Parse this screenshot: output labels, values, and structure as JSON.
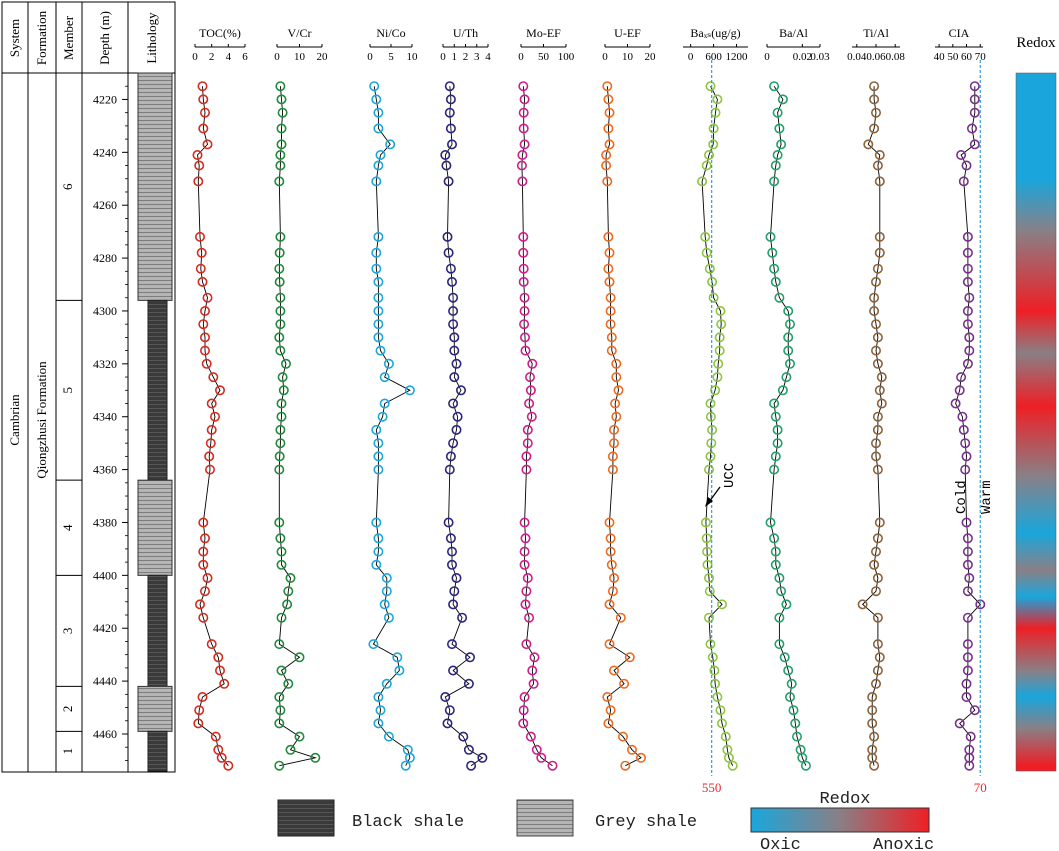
{
  "strat": {
    "headers": {
      "system": "System",
      "formation": "Formation",
      "member": "Member",
      "depth": "Depth (m)",
      "lithology": "Lithology"
    },
    "system": "Cambrian",
    "formation": "Qiongzhusi Formation",
    "members": [
      {
        "label": "6",
        "top": 4210,
        "bottom": 4296
      },
      {
        "label": "5",
        "top": 4296,
        "bottom": 4364
      },
      {
        "label": "4",
        "top": 4364,
        "bottom": 4400
      },
      {
        "label": "3",
        "top": 4400,
        "bottom": 4442
      },
      {
        "label": "2",
        "top": 4442,
        "bottom": 4459
      },
      {
        "label": "1",
        "top": 4459,
        "bottom": 4474
      }
    ],
    "lithology": [
      {
        "type": "grey",
        "top": 4210,
        "bottom": 4296
      },
      {
        "type": "black",
        "top": 4296,
        "bottom": 4364
      },
      {
        "type": "grey",
        "top": 4364,
        "bottom": 4400
      },
      {
        "type": "black",
        "top": 4400,
        "bottom": 4442
      },
      {
        "type": "grey",
        "top": 4442,
        "bottom": 4459
      },
      {
        "type": "black",
        "top": 4459,
        "bottom": 4474
      }
    ]
  },
  "chart_data": {
    "type": "line",
    "y_axis": {
      "label": "Depth (m)",
      "range": [
        4210,
        4474
      ],
      "ticks": [
        4220,
        4240,
        4260,
        4280,
        4300,
        4320,
        4340,
        4360,
        4380,
        4400,
        4420,
        4440,
        4460
      ]
    },
    "depths": [
      4215,
      4220,
      4225,
      4231,
      4237,
      4241,
      4245,
      4251,
      4272,
      4278,
      4284,
      4289,
      4295,
      4300,
      4305,
      4310,
      4315,
      4320,
      4325,
      4330,
      4335,
      4340,
      4345,
      4350,
      4355,
      4360,
      4380,
      4386,
      4391,
      4396,
      4401,
      4406,
      4411,
      4416,
      4426,
      4431,
      4436,
      4441,
      4446,
      4451,
      4456,
      4461,
      4466,
      4469,
      4472
    ],
    "series": [
      {
        "name": "TOC(%)",
        "color": "#d62a1e",
        "range": [
          0,
          6
        ],
        "ticks": [
          "0",
          "2",
          "4",
          "6"
        ],
        "tickvals": [
          0,
          2,
          4,
          6
        ],
        "values": [
          0.9,
          1.0,
          1.2,
          1.0,
          1.5,
          0.3,
          0.5,
          0.4,
          0.6,
          0.8,
          0.7,
          0.9,
          1.5,
          1.2,
          1.0,
          1.2,
          1.2,
          1.4,
          2.2,
          3.0,
          2.0,
          2.4,
          2.0,
          1.9,
          1.7,
          1.8,
          1.0,
          1.2,
          1.0,
          1.0,
          1.5,
          1.2,
          0.6,
          1.0,
          2.0,
          2.8,
          3.0,
          3.5,
          0.9,
          0.5,
          0.4,
          2.5,
          2.8,
          3.2,
          4.0
        ]
      },
      {
        "name": "V/Cr",
        "color": "#1f8a3a",
        "range": [
          0,
          20
        ],
        "ticks": [
          "0",
          "10",
          "20"
        ],
        "tickvals": [
          0,
          10,
          20
        ],
        "values": [
          1.5,
          2.0,
          2.5,
          2.0,
          2.0,
          1.5,
          1.5,
          1.0,
          1.5,
          1.2,
          1.0,
          1.2,
          1.5,
          1.5,
          1.5,
          1.0,
          1.5,
          4.0,
          2.5,
          3.0,
          2.0,
          2.0,
          1.5,
          1.5,
          1.2,
          1.0,
          1.0,
          1.5,
          2.0,
          2.0,
          6.0,
          5.0,
          4.5,
          2.0,
          1.0,
          10.0,
          2.0,
          5.0,
          1.0,
          1.5,
          1.0,
          10.0,
          6.0,
          17.0,
          1.0
        ]
      },
      {
        "name": "Ni/Co",
        "color": "#1aa7dc",
        "range": [
          0,
          10
        ],
        "ticks": [
          "0",
          "5",
          "10"
        ],
        "tickvals": [
          0,
          5,
          10
        ],
        "values": [
          1.0,
          1.5,
          2.0,
          2.0,
          4.8,
          2.5,
          2.0,
          1.5,
          2.0,
          1.5,
          1.5,
          2.0,
          2.0,
          2.0,
          2.0,
          2.0,
          2.5,
          4.5,
          3.5,
          9.5,
          3.5,
          3.0,
          1.5,
          2.0,
          2.0,
          2.0,
          1.5,
          2.0,
          2.0,
          1.5,
          4.0,
          4.0,
          3.5,
          4.5,
          0.8,
          6.5,
          7.0,
          4.0,
          2.0,
          2.5,
          2.0,
          4.5,
          9.0,
          9.5,
          8.5
        ]
      },
      {
        "name": "U/Th",
        "color": "#2a2480",
        "range": [
          0,
          4
        ],
        "ticks": [
          "0",
          "1",
          "2",
          "3",
          "4"
        ],
        "tickvals": [
          0,
          1,
          2,
          3,
          4
        ],
        "values": [
          0.6,
          0.7,
          0.6,
          0.7,
          0.8,
          0.2,
          0.3,
          0.5,
          0.4,
          0.5,
          0.7,
          0.8,
          0.9,
          0.9,
          0.9,
          1.0,
          1.0,
          1.2,
          1.0,
          1.6,
          0.9,
          1.3,
          1.2,
          0.9,
          0.7,
          0.6,
          0.5,
          0.7,
          0.8,
          0.8,
          1.2,
          1.0,
          0.9,
          1.7,
          0.8,
          2.4,
          0.9,
          2.3,
          0.2,
          0.6,
          0.4,
          1.8,
          2.3,
          3.5,
          2.5
        ]
      },
      {
        "name": "Mo-EF",
        "color": "#d01c8b",
        "range": [
          0,
          100
        ],
        "ticks": [
          "0",
          "50",
          "100"
        ],
        "tickvals": [
          0,
          50,
          100
        ],
        "values": [
          5,
          8,
          6,
          6,
          8,
          3,
          2,
          3,
          5,
          5,
          6,
          6,
          8,
          8,
          7,
          9,
          10,
          25,
          20,
          22,
          18,
          24,
          15,
          15,
          12,
          12,
          8,
          10,
          8,
          8,
          15,
          12,
          10,
          18,
          12,
          30,
          25,
          28,
          8,
          6,
          5,
          22,
          35,
          45,
          70
        ]
      },
      {
        "name": "U-EF",
        "color": "#ee6a1f",
        "range": [
          0,
          20
        ],
        "ticks": [
          "0",
          "10",
          "20"
        ],
        "tickvals": [
          0,
          10,
          20
        ],
        "values": [
          1,
          1.5,
          2,
          1.5,
          2,
          0.5,
          0.5,
          1,
          1.5,
          2,
          1.5,
          2,
          2.5,
          2.5,
          2.5,
          3,
          3,
          5,
          5,
          6,
          4.5,
          5,
          4,
          4,
          3.5,
          3.5,
          2,
          2.5,
          2.5,
          3,
          4,
          3.5,
          2,
          7,
          2,
          11,
          4,
          8.5,
          1,
          2.5,
          1.5,
          8,
          12,
          16,
          9
        ]
      },
      {
        "name": "Baxs(ug/g)",
        "display_name": "Baₓₛ(ug/g)",
        "color": "#8cc63f",
        "range": [
          -200,
          1500
        ],
        "ticks": [
          "0",
          "600",
          "1200"
        ],
        "tickvals": [
          0,
          600,
          1200
        ],
        "values": [
          520,
          700,
          650,
          600,
          590,
          480,
          420,
          300,
          380,
          420,
          500,
          560,
          600,
          780,
          800,
          760,
          760,
          720,
          700,
          640,
          520,
          530,
          560,
          540,
          520,
          480,
          400,
          420,
          430,
          440,
          480,
          500,
          820,
          480,
          520,
          580,
          620,
          640,
          700,
          780,
          820,
          920,
          960,
          1000,
          1100
        ]
      },
      {
        "name": "Ba/Al",
        "color": "#20a06a",
        "range": [
          0,
          0.03
        ],
        "ticks": [
          "0",
          "0.02",
          "0.03"
        ],
        "tickvals": [
          0,
          0.02,
          0.03
        ],
        "values": [
          0.004,
          0.009,
          0.006,
          0.007,
          0.008,
          0.006,
          0.005,
          0.004,
          0.002,
          0.003,
          0.004,
          0.005,
          0.007,
          0.012,
          0.013,
          0.012,
          0.012,
          0.013,
          0.011,
          0.009,
          0.004,
          0.005,
          0.006,
          0.006,
          0.005,
          0.004,
          0.002,
          0.004,
          0.005,
          0.005,
          0.007,
          0.008,
          0.011,
          0.007,
          0.007,
          0.01,
          0.012,
          0.014,
          0.013,
          0.015,
          0.016,
          0.017,
          0.019,
          0.02,
          0.022
        ]
      },
      {
        "name": "Ti/Al",
        "color": "#8c6239",
        "range": [
          0.035,
          0.085
        ],
        "ticks": [
          "0.04",
          "0.06",
          "0.08"
        ],
        "tickvals": [
          0.04,
          0.06,
          0.08
        ],
        "values": [
          0.058,
          0.058,
          0.06,
          0.058,
          0.052,
          0.064,
          0.062,
          0.064,
          0.064,
          0.064,
          0.062,
          0.06,
          0.058,
          0.058,
          0.06,
          0.062,
          0.06,
          0.062,
          0.066,
          0.064,
          0.066,
          0.062,
          0.062,
          0.06,
          0.06,
          0.062,
          0.064,
          0.062,
          0.06,
          0.058,
          0.062,
          0.06,
          0.046,
          0.062,
          0.062,
          0.064,
          0.062,
          0.06,
          0.056,
          0.056,
          0.056,
          0.058,
          0.056,
          0.056,
          0.058
        ]
      },
      {
        "name": "CIA",
        "color": "#7a2f8f",
        "range": [
          37,
          72
        ],
        "ticks": [
          "40",
          "50",
          "60",
          "70"
        ],
        "tickvals": [
          40,
          50,
          60,
          70
        ],
        "values": [
          66,
          66,
          66,
          64,
          66,
          56,
          60,
          58,
          61,
          61,
          61,
          61,
          62,
          61,
          61,
          62,
          62,
          61,
          56,
          55,
          52,
          57,
          58,
          59,
          60,
          59,
          60,
          61,
          61,
          61,
          62,
          61,
          70,
          61,
          61,
          61,
          61,
          60,
          60,
          66,
          55,
          63,
          62,
          62,
          62
        ]
      }
    ],
    "reference_lines": [
      {
        "series": "Baxs(ug/g)",
        "value": 550,
        "label": "550",
        "annotation": "UCC"
      },
      {
        "series": "CIA",
        "value": 70,
        "label": "70",
        "left_text": "Cold",
        "right_text": "Warm"
      }
    ],
    "redox_bar": {
      "title": "Redox",
      "colors": {
        "oxic": "#1aa6dc",
        "mid": "#8a7f85",
        "anoxic": "#ee1f25"
      },
      "stops": [
        {
          "depth": 4215,
          "state": "oxic"
        },
        {
          "depth": 4250,
          "state": "oxic"
        },
        {
          "depth": 4270,
          "state": "mid"
        },
        {
          "depth": 4300,
          "state": "anoxic"
        },
        {
          "depth": 4316,
          "state": "mid"
        },
        {
          "depth": 4336,
          "state": "anoxic"
        },
        {
          "depth": 4362,
          "state": "mid"
        },
        {
          "depth": 4384,
          "state": "oxic"
        },
        {
          "depth": 4398,
          "state": "mid"
        },
        {
          "depth": 4408,
          "state": "oxic"
        },
        {
          "depth": 4420,
          "state": "anoxic"
        },
        {
          "depth": 4436,
          "state": "mid"
        },
        {
          "depth": 4446,
          "state": "oxic"
        },
        {
          "depth": 4458,
          "state": "mid"
        },
        {
          "depth": 4472,
          "state": "anoxic"
        }
      ]
    },
    "legend": {
      "black_label": "Black shale",
      "grey_label": "Grey shale",
      "redox_title": "Redox",
      "oxic_label": "Oxic",
      "anoxic_label": "Anoxic"
    }
  }
}
